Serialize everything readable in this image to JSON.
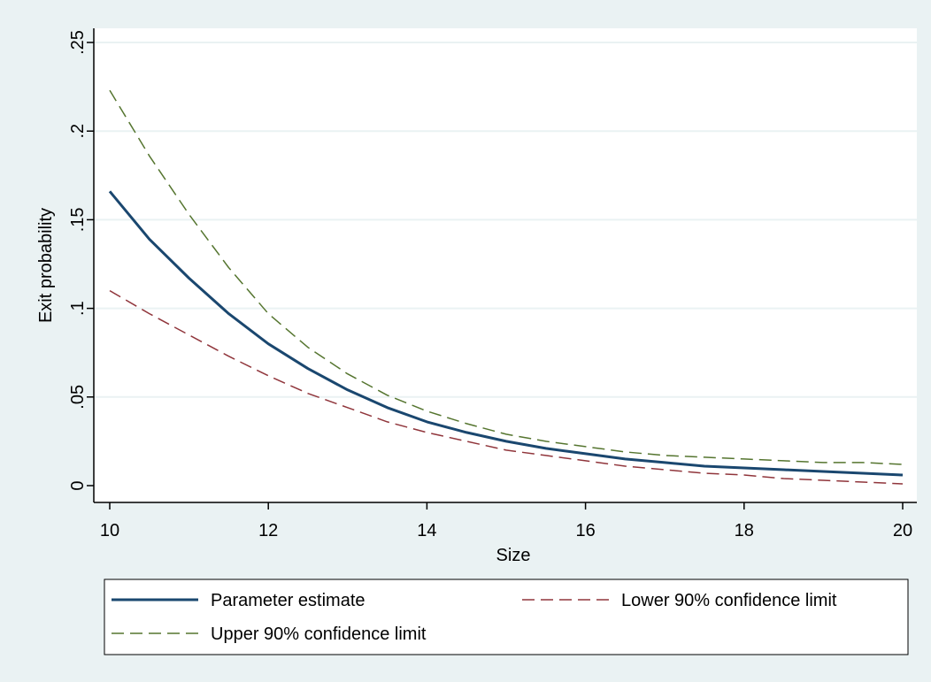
{
  "chart_data": {
    "type": "line",
    "title": "",
    "xlabel": "Size",
    "ylabel": "Exit probability",
    "xlim": [
      10,
      20
    ],
    "ylim": [
      0,
      0.25
    ],
    "xticks": [
      10,
      12,
      14,
      16,
      18,
      20
    ],
    "yticks": [
      0,
      0.05,
      0.1,
      0.15,
      0.2,
      0.25
    ],
    "xtick_labels": [
      "10",
      "12",
      "14",
      "16",
      "18",
      "20"
    ],
    "ytick_labels": [
      "0",
      ".05",
      ".1",
      ".15",
      ".2",
      ".25"
    ],
    "grid": "horizontal",
    "legend_position": "bottom",
    "x": [
      10,
      10.5,
      11,
      11.5,
      12,
      12.5,
      13,
      13.5,
      14,
      14.5,
      15,
      15.5,
      16,
      16.5,
      17,
      17.5,
      18,
      18.5,
      19,
      19.5,
      20
    ],
    "series": [
      {
        "name": "Parameter estimate",
        "color": "#1a476f",
        "style": "solid",
        "values": [
          0.166,
          0.139,
          0.117,
          0.097,
          0.08,
          0.066,
          0.054,
          0.044,
          0.036,
          0.03,
          0.025,
          0.021,
          0.018,
          0.015,
          0.013,
          0.011,
          0.01,
          0.009,
          0.008,
          0.007,
          0.006
        ]
      },
      {
        "name": "Lower 90% confidence limit",
        "color": "#90353b",
        "style": "dashed",
        "values": [
          0.11,
          0.097,
          0.085,
          0.073,
          0.062,
          0.052,
          0.044,
          0.036,
          0.03,
          0.025,
          0.02,
          0.017,
          0.014,
          0.011,
          0.009,
          0.007,
          0.006,
          0.004,
          0.003,
          0.002,
          0.001
        ]
      },
      {
        "name": "Upper 90% confidence limit",
        "color": "#55752f",
        "style": "dashed",
        "values": [
          0.223,
          0.186,
          0.153,
          0.123,
          0.097,
          0.078,
          0.063,
          0.051,
          0.042,
          0.035,
          0.029,
          0.025,
          0.022,
          0.019,
          0.017,
          0.016,
          0.015,
          0.014,
          0.013,
          0.013,
          0.012
        ]
      }
    ]
  }
}
